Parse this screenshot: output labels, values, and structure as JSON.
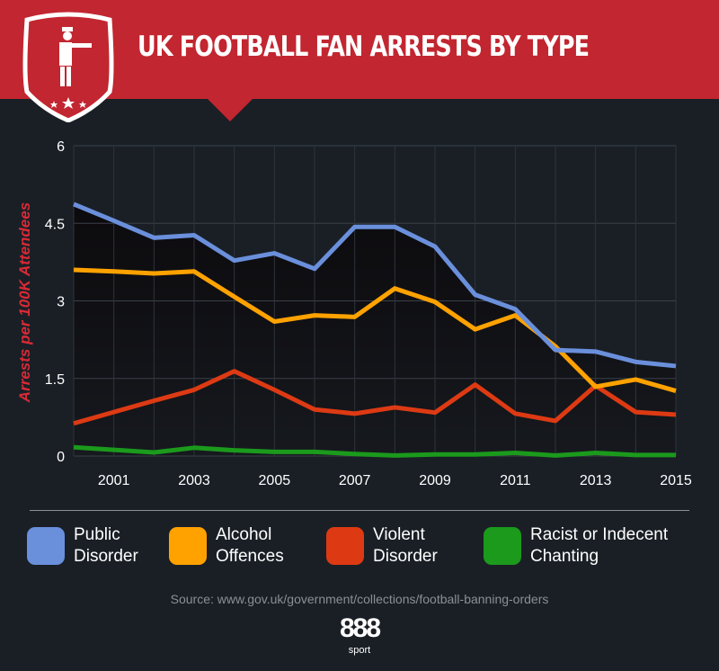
{
  "header": {
    "title": "UK FOOTBALL FAN ARRESTS BY TYPE"
  },
  "chart_data": {
    "type": "line",
    "title": "UK FOOTBALL FAN ARRESTS BY TYPE",
    "ylabel": "Arrests per 100K Attendees",
    "xlabel": "",
    "ylim": [
      0,
      6
    ],
    "yticks": [
      "0",
      "1.5",
      "3",
      "4.5",
      "6"
    ],
    "xticks": [
      "2001",
      "2003",
      "2005",
      "2007",
      "2009",
      "2011",
      "2013",
      "2015"
    ],
    "grid": true,
    "legend": "bottom",
    "x": [
      2000,
      2001,
      2002,
      2003,
      2004,
      2005,
      2006,
      2007,
      2008,
      2009,
      2010,
      2011,
      2012,
      2013,
      2014,
      2015
    ],
    "series": [
      {
        "name": "Public Disorder",
        "color": "#6a8fdb",
        "values": [
          4.87,
          4.55,
          4.22,
          4.27,
          3.78,
          3.92,
          3.62,
          4.43,
          4.43,
          4.05,
          3.12,
          2.84,
          2.05,
          2.02,
          1.82,
          1.74
        ]
      },
      {
        "name": "Alcohol Offences",
        "color": "#ffa200",
        "values": [
          3.6,
          3.57,
          3.53,
          3.57,
          3.08,
          2.6,
          2.72,
          2.69,
          3.24,
          2.98,
          2.45,
          2.72,
          2.12,
          1.34,
          1.48,
          1.26
        ]
      },
      {
        "name": "Violent Disorder",
        "color": "#dd3a14",
        "values": [
          0.63,
          0.85,
          1.07,
          1.28,
          1.64,
          1.28,
          0.9,
          0.82,
          0.94,
          0.84,
          1.38,
          0.82,
          0.68,
          1.36,
          0.85,
          0.8
        ]
      },
      {
        "name": "Racist or Indecent Chanting",
        "color": "#1b9a1c",
        "values": [
          0.17,
          0.12,
          0.07,
          0.16,
          0.11,
          0.08,
          0.08,
          0.04,
          0.01,
          0.03,
          0.03,
          0.06,
          0.01,
          0.06,
          0.02,
          0.02
        ]
      }
    ]
  },
  "legend": [
    {
      "line1": "Public",
      "line2": "Disorder"
    },
    {
      "line1": "Alcohol",
      "line2": "Offences"
    },
    {
      "line1": "Violent",
      "line2": "Disorder"
    },
    {
      "line1": "Racist or Indecent",
      "line2": "Chanting"
    }
  ],
  "footer": {
    "source": "Source: www.gov.uk/government/collections/football-banning-orders",
    "logo_text": "888",
    "logo_sub": "sport"
  }
}
